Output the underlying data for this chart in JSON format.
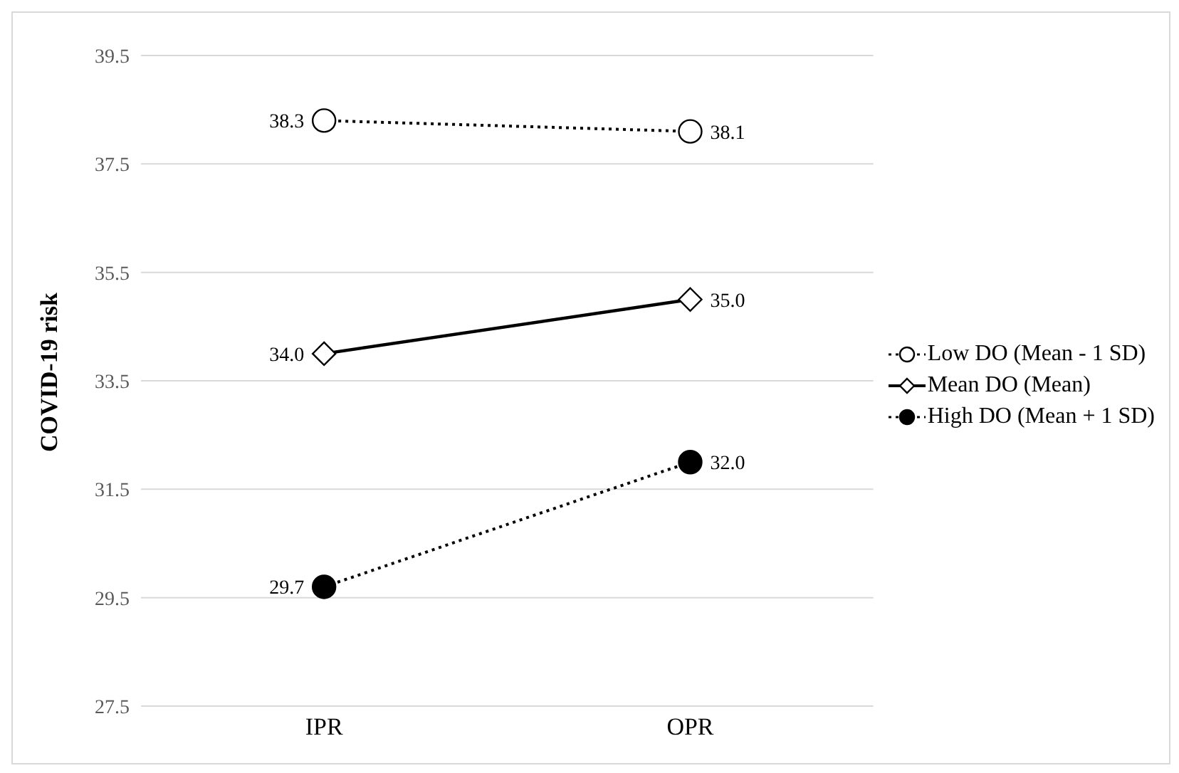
{
  "chart_data": {
    "type": "line",
    "ylabel": "COVID-19 risk",
    "categories": [
      "IPR",
      "OPR"
    ],
    "series": [
      {
        "name": "Low DO (Mean - 1 SD)",
        "color": "#000000",
        "colors": [
          "#ffffff",
          "#ffffff"
        ],
        "values": [
          38.3,
          38.1
        ],
        "value_labels": [
          "38.3",
          "38.1"
        ],
        "marker": "circle",
        "line_style": "dotted"
      },
      {
        "name": "Mean DO (Mean)",
        "color": "#000000",
        "colors": [
          "#ffffff",
          "#ffffff"
        ],
        "values": [
          34.0,
          35.0
        ],
        "value_labels": [
          "34.0",
          "35.0"
        ],
        "marker": "diamond",
        "line_style": "solid"
      },
      {
        "name": "High DO (Mean + 1 SD)",
        "color": "#000000",
        "colors": [
          "#000000",
          "#000000"
        ],
        "values": [
          29.7,
          32.0
        ],
        "value_labels": [
          "29.7",
          "32.0"
        ],
        "marker": "circle",
        "line_style": "dotted"
      }
    ],
    "ylim": [
      27.5,
      39.5
    ],
    "yticks": [
      27.5,
      29.5,
      31.5,
      33.5,
      35.5,
      37.5,
      39.5
    ],
    "grid": "y",
    "legend": "right"
  }
}
